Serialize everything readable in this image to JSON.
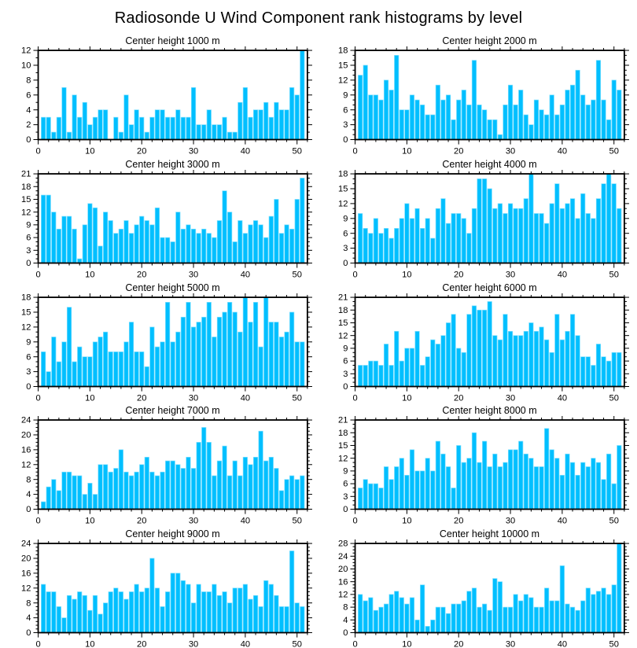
{
  "page_title": "Radiosonde U Wind Component rank histograms by level",
  "colors": {
    "bar_fill": "#00BFFF",
    "bar_edge": "#7EDFFF",
    "axis": "#000000",
    "text": "#000000",
    "background": "#FFFFFF"
  },
  "axes_common": {
    "xlim": [
      0,
      52
    ],
    "x_major_ticks": [
      0,
      10,
      20,
      30,
      40,
      50
    ],
    "x_minor_step": 2,
    "y_minor_step": 1,
    "grid": "off",
    "legend": "none",
    "xlabel": "",
    "ylabel": ""
  },
  "chart_data": [
    {
      "type": "bar",
      "title": "Center height 1000 m",
      "ylim": [
        0,
        12
      ],
      "ystep": 2,
      "x_start_rank": 1,
      "values": [
        3,
        3,
        1,
        3,
        7,
        1,
        6,
        3,
        5,
        2,
        3,
        4,
        4,
        0,
        3,
        1,
        6,
        2,
        4,
        3,
        1,
        3,
        4,
        4,
        3,
        3,
        4,
        3,
        3,
        7,
        2,
        2,
        4,
        2,
        2,
        3,
        1,
        1,
        5,
        7,
        3,
        4,
        4,
        5,
        3,
        5,
        4,
        4,
        7,
        6,
        12
      ]
    },
    {
      "type": "bar",
      "title": "Center height 2000 m",
      "ylim": [
        0,
        18
      ],
      "ystep": 3,
      "x_start_rank": 1,
      "values": [
        13,
        15,
        9,
        9,
        8,
        12,
        10,
        17,
        6,
        6,
        9,
        8,
        7,
        5,
        5,
        11,
        8,
        9,
        4,
        8,
        10,
        7,
        16,
        7,
        6,
        4,
        4,
        1,
        7,
        11,
        7,
        10,
        5,
        3,
        8,
        6,
        5,
        9,
        5,
        7,
        10,
        11,
        14,
        9,
        7,
        8,
        16,
        8,
        4,
        12,
        10
      ]
    },
    {
      "type": "bar",
      "title": "Center height 3000 m",
      "ylim": [
        0,
        21
      ],
      "ystep": 3,
      "x_start_rank": 1,
      "values": [
        16,
        16,
        12,
        8,
        11,
        11,
        8,
        1,
        9,
        14,
        13,
        4,
        12,
        10,
        7,
        8,
        10,
        7,
        9,
        11,
        10,
        9,
        13,
        6,
        6,
        5,
        12,
        8,
        9,
        8,
        7,
        8,
        7,
        6,
        10,
        17,
        12,
        5,
        10,
        7,
        9,
        10,
        9,
        6,
        11,
        15,
        7,
        9,
        8,
        15,
        20
      ]
    },
    {
      "type": "bar",
      "title": "Center height 4000 m",
      "ylim": [
        0,
        18
      ],
      "ystep": 3,
      "x_start_rank": 1,
      "values": [
        10,
        7,
        6,
        9,
        6,
        7,
        5,
        7,
        9,
        12,
        9,
        11,
        7,
        9,
        5,
        11,
        13,
        8,
        10,
        10,
        9,
        6,
        11,
        17,
        17,
        15,
        11,
        12,
        10,
        12,
        11,
        11,
        13,
        18,
        10,
        10,
        8,
        12,
        16,
        11,
        12,
        13,
        9,
        14,
        10,
        9,
        13,
        16,
        18,
        16,
        11
      ]
    },
    {
      "type": "bar",
      "title": "Center height 5000 m",
      "ylim": [
        0,
        18
      ],
      "ystep": 3,
      "x_start_rank": 1,
      "values": [
        7,
        3,
        10,
        5,
        9,
        16,
        5,
        8,
        6,
        6,
        9,
        10,
        11,
        7,
        7,
        7,
        9,
        13,
        7,
        7,
        4,
        12,
        8,
        9,
        17,
        9,
        11,
        14,
        17,
        12,
        13,
        14,
        17,
        10,
        14,
        15,
        17,
        15,
        11,
        18,
        13,
        17,
        8,
        18,
        13,
        13,
        10,
        11,
        15,
        9,
        9
      ]
    },
    {
      "type": "bar",
      "title": "Center height 6000 m",
      "ylim": [
        0,
        21
      ],
      "ystep": 3,
      "x_start_rank": 1,
      "values": [
        5,
        5,
        6,
        6,
        5,
        10,
        5,
        13,
        6,
        9,
        9,
        13,
        5,
        7,
        11,
        10,
        12,
        15,
        17,
        9,
        8,
        17,
        19,
        18,
        18,
        20,
        12,
        11,
        17,
        13,
        12,
        12,
        13,
        15,
        13,
        14,
        11,
        8,
        17,
        11,
        13,
        17,
        12,
        7,
        7,
        5,
        10,
        7,
        6,
        8,
        8
      ]
    },
    {
      "type": "bar",
      "title": "Center height 7000 m",
      "ylim": [
        0,
        24
      ],
      "ystep": 4,
      "x_start_rank": 1,
      "values": [
        2,
        6,
        8,
        5,
        10,
        10,
        9,
        9,
        4,
        7,
        4,
        12,
        12,
        10,
        11,
        16,
        10,
        9,
        10,
        12,
        14,
        10,
        9,
        10,
        13,
        13,
        12,
        11,
        14,
        11,
        18,
        22,
        18,
        9,
        13,
        17,
        9,
        13,
        9,
        14,
        12,
        14,
        21,
        13,
        14,
        11,
        5,
        8,
        9,
        8,
        9
      ]
    },
    {
      "type": "bar",
      "title": "Center height 8000 m",
      "ylim": [
        0,
        21
      ],
      "ystep": 3,
      "x_start_rank": 1,
      "values": [
        5,
        7,
        6,
        6,
        5,
        10,
        7,
        10,
        12,
        8,
        14,
        9,
        9,
        12,
        9,
        16,
        13,
        10,
        5,
        15,
        11,
        12,
        18,
        11,
        16,
        10,
        13,
        10,
        11,
        14,
        14,
        16,
        13,
        12,
        10,
        10,
        19,
        14,
        12,
        8,
        13,
        11,
        8,
        11,
        10,
        12,
        11,
        7,
        13,
        6,
        15
      ]
    },
    {
      "type": "bar",
      "title": "Center height 9000 m",
      "ylim": [
        0,
        24
      ],
      "ystep": 4,
      "x_start_rank": 1,
      "values": [
        13,
        11,
        11,
        7,
        4,
        10,
        9,
        11,
        10,
        6,
        10,
        5,
        8,
        11,
        12,
        11,
        9,
        11,
        13,
        11,
        12,
        20,
        12,
        7,
        11,
        16,
        16,
        14,
        13,
        8,
        13,
        11,
        11,
        13,
        10,
        11,
        8,
        12,
        12,
        13,
        9,
        10,
        7,
        14,
        13,
        10,
        7,
        7,
        22,
        8,
        7
      ]
    },
    {
      "type": "bar",
      "title": "Center height 10000 m",
      "ylim": [
        0,
        28
      ],
      "ystep": 4,
      "x_start_rank": 1,
      "values": [
        12,
        10,
        11,
        7,
        8,
        9,
        12,
        13,
        11,
        9,
        11,
        4,
        15,
        2,
        4,
        8,
        8,
        6,
        9,
        9,
        10,
        13,
        14,
        8,
        9,
        7,
        17,
        16,
        8,
        8,
        12,
        10,
        12,
        11,
        8,
        8,
        14,
        10,
        10,
        21,
        9,
        8,
        7,
        10,
        14,
        12,
        13,
        14,
        12,
        15,
        28
      ]
    }
  ]
}
